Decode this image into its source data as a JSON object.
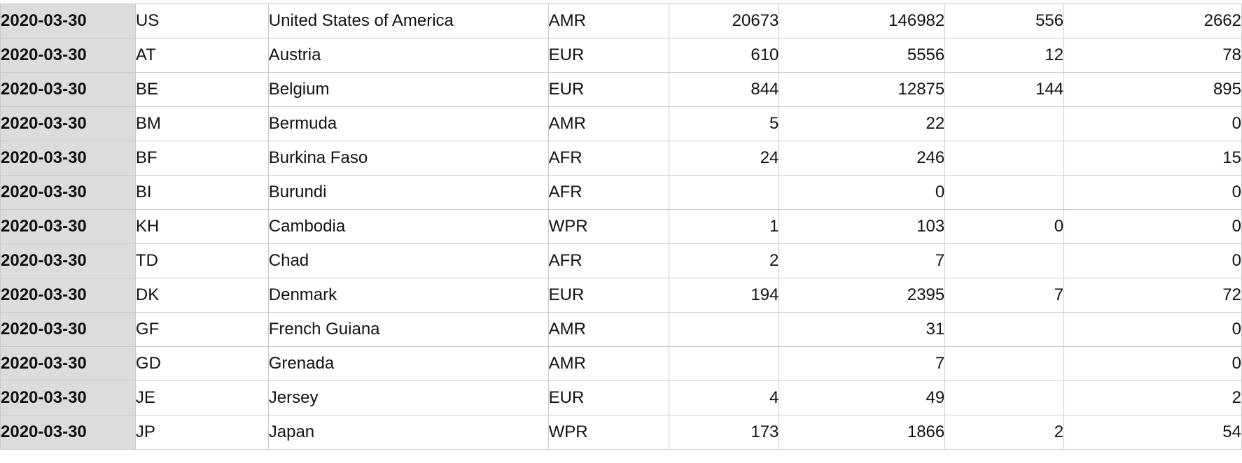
{
  "table": {
    "rows": [
      {
        "date": "2020-03-30",
        "code": "US",
        "name": "United States of America",
        "region": "AMR",
        "n1": "20673",
        "n2": "146982",
        "n3": "556",
        "n4": "2662"
      },
      {
        "date": "2020-03-30",
        "code": "AT",
        "name": "Austria",
        "region": "EUR",
        "n1": "610",
        "n2": "5556",
        "n3": "12",
        "n4": "78"
      },
      {
        "date": "2020-03-30",
        "code": "BE",
        "name": "Belgium",
        "region": "EUR",
        "n1": "844",
        "n2": "12875",
        "n3": "144",
        "n4": "895"
      },
      {
        "date": "2020-03-30",
        "code": "BM",
        "name": "Bermuda",
        "region": "AMR",
        "n1": "5",
        "n2": "22",
        "n3": "",
        "n4": "0"
      },
      {
        "date": "2020-03-30",
        "code": "BF",
        "name": "Burkina Faso",
        "region": "AFR",
        "n1": "24",
        "n2": "246",
        "n3": "",
        "n4": "15"
      },
      {
        "date": "2020-03-30",
        "code": "BI",
        "name": "Burundi",
        "region": "AFR",
        "n1": "",
        "n2": "0",
        "n3": "",
        "n4": "0"
      },
      {
        "date": "2020-03-30",
        "code": "KH",
        "name": "Cambodia",
        "region": "WPR",
        "n1": "1",
        "n2": "103",
        "n3": "0",
        "n4": "0"
      },
      {
        "date": "2020-03-30",
        "code": "TD",
        "name": "Chad",
        "region": "AFR",
        "n1": "2",
        "n2": "7",
        "n3": "",
        "n4": "0"
      },
      {
        "date": "2020-03-30",
        "code": "DK",
        "name": "Denmark",
        "region": "EUR",
        "n1": "194",
        "n2": "2395",
        "n3": "7",
        "n4": "72"
      },
      {
        "date": "2020-03-30",
        "code": "GF",
        "name": "French Guiana",
        "region": "AMR",
        "n1": "",
        "n2": "31",
        "n3": "",
        "n4": "0"
      },
      {
        "date": "2020-03-30",
        "code": "GD",
        "name": "Grenada",
        "region": "AMR",
        "n1": "",
        "n2": "7",
        "n3": "",
        "n4": "0"
      },
      {
        "date": "2020-03-30",
        "code": "JE",
        "name": "Jersey",
        "region": "EUR",
        "n1": "4",
        "n2": "49",
        "n3": "",
        "n4": "2"
      },
      {
        "date": "2020-03-30",
        "code": "JP",
        "name": "Japan",
        "region": "WPR",
        "n1": "173",
        "n2": "1866",
        "n3": "2",
        "n4": "54"
      }
    ]
  }
}
